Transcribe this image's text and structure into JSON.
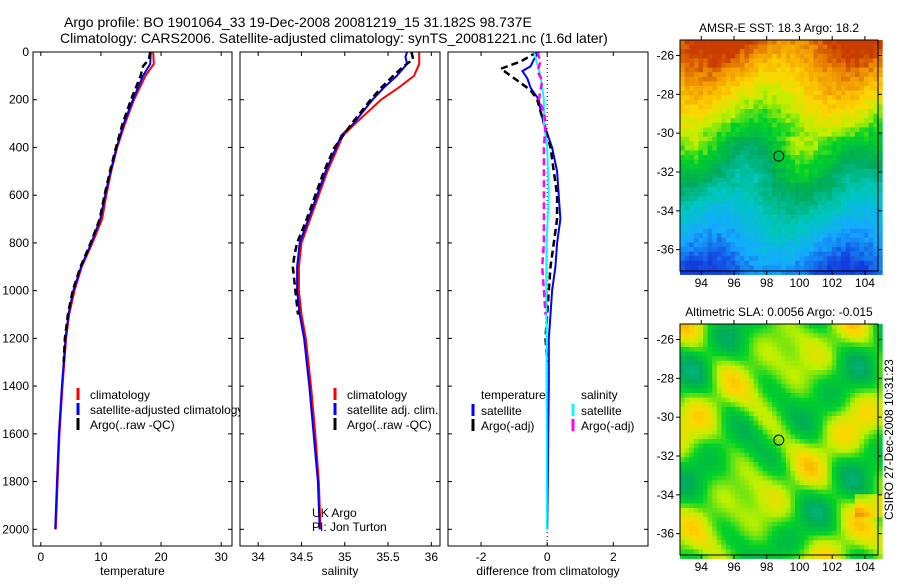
{
  "title": {
    "line1": "Argo profile: BO 1901064_33 19-Dec-2008 20081219_15 31.182S 98.737E",
    "line2": "Climatology: CARS2006. Satellite-adjusted climatology: synTS_20081221.nc (1.6d later)"
  },
  "side_label": "CSIRO 27-Dec-2008 10:31:23",
  "colors": {
    "climatology": "#ff0000",
    "satellite": "#0000ff",
    "argo": "#000000",
    "sal_satellite": "#00ffff",
    "sal_argo": "#ff00ff"
  },
  "chart_data": [
    {
      "type": "line",
      "id": "temperature",
      "xlabel": "temperature",
      "ylabel": "",
      "xlim": [
        -1.3,
        31.8
      ],
      "ylim": [
        0,
        2070
      ],
      "y_reversed": true,
      "xticks": [
        0,
        10,
        20,
        30
      ],
      "xtick_labels": [
        "0",
        "10",
        "20",
        "30"
      ],
      "yticks": [
        0,
        200,
        400,
        600,
        800,
        1000,
        1200,
        1400,
        1600,
        1800,
        2000
      ],
      "ytick_labels": [
        "0",
        "200",
        "400",
        "600",
        "800",
        "1000",
        "1200",
        "1400",
        "1600",
        "1800",
        "2000"
      ],
      "legend": [
        "climatology",
        "satellite-adjusted climatology",
        "Argo(..raw -QC)"
      ],
      "series": [
        {
          "name": "climatology",
          "color": "climatology",
          "dash": false,
          "depth": [
            0,
            50,
            100,
            200,
            300,
            400,
            500,
            600,
            700,
            800,
            900,
            1000,
            1100,
            1200,
            1400,
            1600,
            1800,
            2000
          ],
          "values": [
            18.7,
            18.8,
            17.4,
            15.5,
            14.0,
            12.7,
            11.7,
            10.9,
            10.2,
            8.6,
            6.8,
            5.6,
            4.7,
            4.2,
            3.6,
            3.1,
            2.8,
            2.5
          ]
        },
        {
          "name": "satellite-adjusted climatology",
          "color": "satellite",
          "dash": false,
          "depth": [
            0,
            50,
            100,
            200,
            300,
            400,
            500,
            600,
            700,
            800,
            900,
            1000,
            1100,
            1200,
            1400,
            1600,
            1800,
            2000
          ],
          "values": [
            18.3,
            18.2,
            17.0,
            15.3,
            13.8,
            12.6,
            11.6,
            10.7,
            9.9,
            8.4,
            6.7,
            5.4,
            4.6,
            4.1,
            3.5,
            3.0,
            2.7,
            2.4
          ]
        },
        {
          "name": "Argo(..raw -QC)",
          "color": "argo",
          "dash": true,
          "depth": [
            0,
            30,
            60,
            100,
            200,
            300,
            400,
            500,
            600,
            700,
            800,
            900,
            1000,
            1100,
            1200,
            1300
          ],
          "values": [
            18.2,
            18.0,
            17.0,
            16.6,
            15.0,
            13.6,
            12.5,
            11.5,
            10.6,
            9.8,
            8.3,
            6.6,
            5.3,
            4.5,
            4.0,
            3.8
          ]
        }
      ]
    },
    {
      "type": "line",
      "id": "salinity",
      "xlabel": "salinity",
      "xlim": [
        33.79,
        36.1
      ],
      "ylim": [
        0,
        2070
      ],
      "y_reversed": true,
      "xticks": [
        34,
        34.5,
        35,
        35.5,
        36
      ],
      "xtick_labels": [
        "34",
        "34.5",
        "35",
        "35.5",
        "36"
      ],
      "legend": [
        "climatology",
        "satellite adj. clim.",
        "Argo(..raw -QC)"
      ],
      "annotation": [
        "UK Argo",
        "PI: Jon Turton"
      ],
      "series": [
        {
          "name": "climatology",
          "color": "climatology",
          "dash": false,
          "depth": [
            0,
            50,
            100,
            150,
            200,
            300,
            350,
            400,
            500,
            600,
            700,
            800,
            900,
            1000,
            1100,
            1200,
            1400,
            1600,
            1800,
            2000
          ],
          "values": [
            35.86,
            35.86,
            35.8,
            35.62,
            35.42,
            35.12,
            34.98,
            34.92,
            34.8,
            34.7,
            34.6,
            34.5,
            34.47,
            34.47,
            34.5,
            34.55,
            34.61,
            34.66,
            34.7,
            34.72
          ]
        },
        {
          "name": "satellite adj. clim.",
          "color": "satellite",
          "dash": false,
          "depth": [
            0,
            20,
            50,
            100,
            150,
            200,
            300,
            350,
            400,
            500,
            600,
            700,
            800,
            900,
            1000,
            1100,
            1200,
            1400,
            1600,
            1800,
            2000
          ],
          "values": [
            35.72,
            35.7,
            35.72,
            35.6,
            35.45,
            35.32,
            35.1,
            34.96,
            34.9,
            34.78,
            34.68,
            34.58,
            34.48,
            34.45,
            34.45,
            34.48,
            34.53,
            34.59,
            34.64,
            34.69,
            34.71
          ]
        },
        {
          "name": "Argo(..raw -QC)",
          "color": "argo",
          "dash": true,
          "depth": [
            0,
            30,
            60,
            100,
            150,
            200,
            300,
            400,
            500,
            600,
            700,
            800,
            850,
            900,
            1000,
            1100
          ],
          "values": [
            35.77,
            35.79,
            35.68,
            35.56,
            35.42,
            35.3,
            35.08,
            34.88,
            34.76,
            34.66,
            34.56,
            34.45,
            34.42,
            34.4,
            34.43,
            34.46
          ]
        }
      ]
    },
    {
      "type": "line",
      "id": "difference",
      "xlabel": "difference from climatology",
      "xlim": [
        -3.0,
        3.05
      ],
      "ylim": [
        0,
        2070
      ],
      "y_reversed": true,
      "xticks": [
        -2,
        0,
        2
      ],
      "xtick_labels": [
        "-2",
        "0",
        "2"
      ],
      "legend_groups": [
        {
          "heading": "temperature",
          "items": [
            "satellite",
            "Argo(-adj)"
          ]
        },
        {
          "heading": "salinity",
          "items": [
            "satellite",
            "Argo(-adj)"
          ]
        }
      ],
      "series": [
        {
          "name": "temperature satellite",
          "color": "satellite",
          "dash": false,
          "depth": [
            0,
            30,
            60,
            80,
            110,
            150,
            200,
            250,
            300,
            400,
            500,
            600,
            700,
            800,
            900,
            1000,
            1100,
            1200,
            1400,
            1600,
            1800,
            2000
          ],
          "values": [
            -0.25,
            -0.4,
            -0.5,
            -0.75,
            -0.6,
            -0.5,
            -0.25,
            -0.2,
            -0.1,
            0.15,
            0.3,
            0.35,
            0.4,
            0.3,
            0.25,
            0.15,
            0.1,
            0.05,
            0.05,
            0.03,
            0.02,
            0.0
          ]
        },
        {
          "name": "temperature Argo(-adj)",
          "color": "argo",
          "dash": true,
          "depth": [
            0,
            40,
            70,
            90,
            120,
            160,
            200,
            250,
            300,
            400,
            500,
            600,
            700,
            800,
            900,
            1000,
            1100,
            1200,
            1300
          ],
          "values": [
            -0.3,
            -0.8,
            -1.4,
            -1.2,
            -0.9,
            -0.5,
            -0.3,
            -0.2,
            -0.1,
            0.1,
            0.2,
            0.3,
            0.3,
            0.2,
            0.1,
            0.05,
            0.0,
            -0.05,
            0.0
          ]
        },
        {
          "name": "salinity satellite",
          "color": "sal_satellite",
          "dash": false,
          "depth": [
            0,
            50,
            100,
            200,
            300,
            400,
            600,
            800,
            1000,
            1200,
            1400,
            1600,
            1800,
            2000
          ],
          "values": [
            -0.4,
            -0.3,
            -0.2,
            -0.1,
            -0.1,
            0.0,
            0.05,
            -0.02,
            -0.03,
            -0.02,
            -0.02,
            -0.01,
            -0.01,
            -0.01
          ]
        },
        {
          "name": "salinity Argo(-adj)",
          "color": "sal_argo",
          "dash": true,
          "depth": [
            0,
            40,
            80,
            120,
            200,
            250,
            300,
            400,
            600,
            800,
            900,
            1000,
            1100
          ],
          "values": [
            -0.3,
            -0.2,
            -0.3,
            -0.15,
            -0.25,
            -0.1,
            -0.05,
            -0.1,
            -0.1,
            -0.1,
            -0.15,
            -0.1,
            -0.05
          ]
        }
      ]
    },
    {
      "type": "heatmap",
      "id": "sst-map",
      "title": "AMSR-E SST: 18.3 Argo: 18.2",
      "xlim": [
        92.7,
        104.8
      ],
      "ylim": [
        -37.1,
        -25.2
      ],
      "xticks": [
        94,
        96,
        98,
        100,
        102,
        104
      ],
      "xtick_labels": [
        "94",
        "96",
        "98",
        "100",
        "102",
        "104"
      ],
      "yticks": [
        -26,
        -28,
        -30,
        -32,
        -34,
        -36
      ],
      "ytick_labels": [
        "-26",
        "-28",
        "-30",
        "-32",
        "-34",
        "-36"
      ],
      "marker": {
        "lon": 98.737,
        "lat": -31.182
      }
    },
    {
      "type": "heatmap",
      "id": "sla-map",
      "title": "Altimetric SLA: 0.0056 Argo: -0.015",
      "xlim": [
        92.7,
        104.8
      ],
      "ylim": [
        -37.1,
        -25.2
      ],
      "xticks": [
        94,
        96,
        98,
        100,
        102,
        104
      ],
      "xtick_labels": [
        "94",
        "96",
        "98",
        "100",
        "102",
        "104"
      ],
      "yticks": [
        -26,
        -28,
        -30,
        -32,
        -34,
        -36
      ],
      "ytick_labels": [
        "-26",
        "-28",
        "-30",
        "-32",
        "-34",
        "-36"
      ],
      "marker": {
        "lon": 98.737,
        "lat": -31.182
      }
    }
  ]
}
